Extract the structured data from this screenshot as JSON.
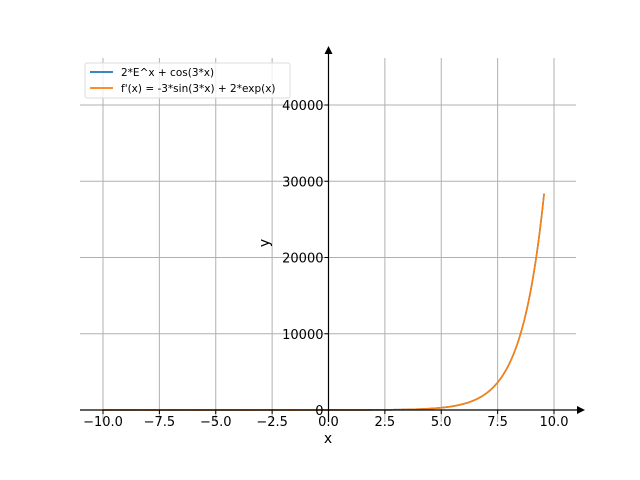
{
  "chart_data": {
    "type": "line",
    "title": "",
    "xlabel": "x",
    "ylabel": "y",
    "xlim": [
      -11,
      11
    ],
    "ylim": [
      -1500,
      47000
    ],
    "grid": true,
    "legend_position": "top-left",
    "x_ticks": [
      -10.0,
      -7.5,
      -5.0,
      -2.5,
      0.0,
      2.5,
      5.0,
      7.5,
      10.0
    ],
    "x_tick_labels": [
      "−10.0",
      "−7.5",
      "−5.0",
      "−2.5",
      "0.0",
      "2.5",
      "5.0",
      "7.5",
      "10.0"
    ],
    "y_ticks": [
      0,
      10000,
      20000,
      30000,
      40000
    ],
    "y_tick_labels": [
      "0",
      "10000",
      "20000",
      "30000",
      "40000"
    ],
    "x_domain": [
      -10,
      9.56
    ],
    "series": [
      {
        "name": "2*E^x + cos(3*x)",
        "color": "#1f77b4",
        "fn": "f",
        "sample_points": [
          [
            -10,
            0.15
          ],
          [
            0,
            3
          ],
          [
            5,
            295.9
          ],
          [
            7.5,
            3616
          ],
          [
            9.56,
            29510
          ]
        ]
      },
      {
        "name": "f'(x) = -3*sin(3*x) + 2*exp(x)",
        "color": "#ff7f0e",
        "fn": "df",
        "sample_points": [
          [
            -10,
            2.96
          ],
          [
            0,
            2
          ],
          [
            5,
            299.8
          ],
          [
            7.5,
            3614
          ],
          [
            9.56,
            29510
          ]
        ]
      }
    ]
  }
}
